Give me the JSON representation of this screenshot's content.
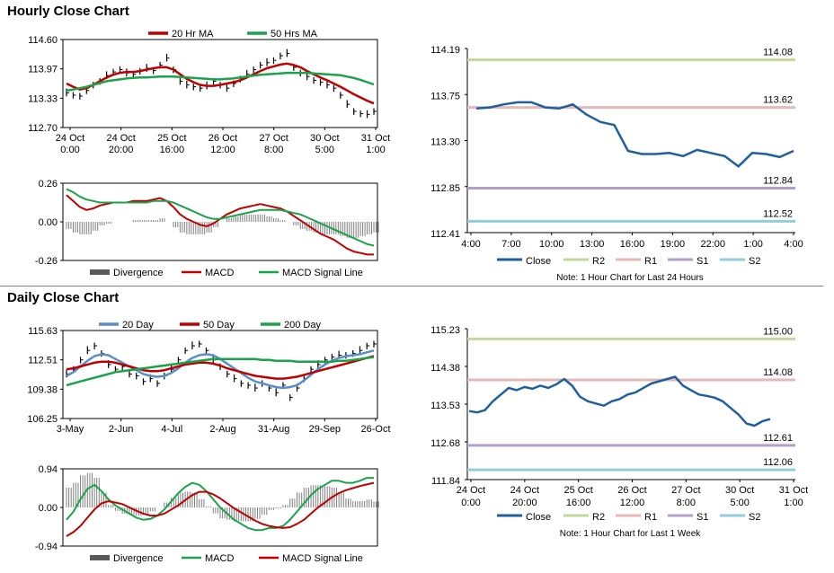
{
  "sections": {
    "hourly_title": "Hourly Close Chart",
    "daily_title": "Daily Close Chart"
  },
  "colors": {
    "close": "#1f5f9f",
    "r2": "#c4d79b",
    "r1": "#e6b8b7",
    "s1": "#b1a0c7",
    "s2": "#92cddc",
    "ma_red": "#c00000",
    "ma_green": "#1aa34a",
    "ma_blue": "#5b8ec6",
    "price": "#000000",
    "hist": "#7f7f7f"
  },
  "chart_data": [
    {
      "id": "hourly_price",
      "type": "line",
      "legend": [
        "20 Hr MA",
        "50 Hrs MA"
      ],
      "yticks": [
        "114.60",
        "113.97",
        "113.33",
        "112.70"
      ],
      "ylim": [
        112.7,
        114.6
      ],
      "xticks": [
        [
          "24 Oct",
          "0:00"
        ],
        [
          "24 Oct",
          "20:00"
        ],
        [
          "25 Oct",
          "16:00"
        ],
        [
          "26 Oct",
          "12:00"
        ],
        [
          "27 Oct",
          "8:00"
        ],
        [
          "30 Oct",
          "5:00"
        ],
        [
          "31 Oct",
          "1:00"
        ]
      ],
      "price": [
        113.45,
        113.4,
        113.38,
        113.5,
        113.62,
        113.7,
        113.82,
        113.9,
        113.95,
        113.88,
        113.85,
        113.92,
        113.98,
        113.93,
        114.05,
        114.2,
        113.95,
        113.7,
        113.62,
        113.58,
        113.55,
        113.6,
        113.7,
        113.62,
        113.55,
        113.65,
        113.75,
        113.85,
        113.95,
        114.05,
        114.1,
        114.15,
        114.25,
        114.3,
        114.0,
        113.88,
        113.8,
        113.72,
        113.68,
        113.62,
        113.55,
        113.4,
        113.2,
        113.05,
        113.0,
        112.98,
        113.05
      ],
      "series": [
        {
          "name": "20 Hr MA",
          "values": [
            113.65,
            113.58,
            113.52,
            113.55,
            113.62,
            113.7,
            113.78,
            113.84,
            113.88,
            113.9,
            113.9,
            113.92,
            113.95,
            113.98,
            114.0,
            114.0,
            113.95,
            113.85,
            113.75,
            113.68,
            113.62,
            113.6,
            113.6,
            113.62,
            113.65,
            113.68,
            113.72,
            113.78,
            113.85,
            113.92,
            113.98,
            114.02,
            114.06,
            114.08,
            114.05,
            114.0,
            113.92,
            113.85,
            113.78,
            113.72,
            113.65,
            113.58,
            113.5,
            113.42,
            113.35,
            113.28,
            113.22
          ]
        },
        {
          "name": "50 Hrs MA",
          "values": [
            113.5,
            113.52,
            113.55,
            113.58,
            113.62,
            113.66,
            113.7,
            113.72,
            113.74,
            113.76,
            113.77,
            113.78,
            113.78,
            113.79,
            113.8,
            113.8,
            113.8,
            113.79,
            113.78,
            113.77,
            113.76,
            113.75,
            113.74,
            113.74,
            113.75,
            113.76,
            113.78,
            113.8,
            113.82,
            113.84,
            113.85,
            113.86,
            113.87,
            113.88,
            113.88,
            113.88,
            113.88,
            113.87,
            113.86,
            113.85,
            113.84,
            113.83,
            113.8,
            113.77,
            113.73,
            113.68,
            113.63
          ]
        }
      ]
    },
    {
      "id": "hourly_macd",
      "type": "line",
      "legend": [
        "Divergence",
        "MACD",
        "MACD Signal Line"
      ],
      "yticks": [
        "0.26",
        "0.00",
        "-0.26"
      ],
      "ylim": [
        -0.26,
        0.26
      ],
      "series": [
        {
          "name": "MACD",
          "values": [
            0.18,
            0.14,
            0.1,
            0.08,
            0.09,
            0.11,
            0.12,
            0.13,
            0.13,
            0.13,
            0.14,
            0.14,
            0.14,
            0.15,
            0.16,
            0.14,
            0.1,
            0.05,
            0.02,
            0.0,
            -0.02,
            -0.03,
            -0.01,
            0.02,
            0.05,
            0.07,
            0.09,
            0.1,
            0.11,
            0.12,
            0.11,
            0.1,
            0.09,
            0.07,
            0.04,
            0.01,
            -0.02,
            -0.05,
            -0.08,
            -0.1,
            -0.12,
            -0.15,
            -0.18,
            -0.2,
            -0.21,
            -0.22,
            -0.22
          ]
        },
        {
          "name": "MACD Signal Line",
          "values": [
            0.22,
            0.2,
            0.17,
            0.15,
            0.14,
            0.13,
            0.13,
            0.13,
            0.13,
            0.13,
            0.13,
            0.13,
            0.13,
            0.14,
            0.14,
            0.14,
            0.13,
            0.11,
            0.09,
            0.07,
            0.05,
            0.03,
            0.02,
            0.02,
            0.03,
            0.04,
            0.05,
            0.06,
            0.07,
            0.08,
            0.08,
            0.08,
            0.08,
            0.07,
            0.06,
            0.05,
            0.03,
            0.01,
            -0.01,
            -0.03,
            -0.05,
            -0.07,
            -0.09,
            -0.11,
            -0.13,
            -0.15,
            -0.16
          ]
        }
      ]
    },
    {
      "id": "hourly_levels",
      "type": "line",
      "yticks": [
        "114.19",
        "113.75",
        "113.30",
        "112.85",
        "112.41"
      ],
      "ylim": [
        112.41,
        114.19
      ],
      "xticks": [
        "4:00",
        "7:00",
        "10:00",
        "13:00",
        "16:00",
        "19:00",
        "22:00",
        "1:00",
        "4:00"
      ],
      "legend": [
        "Close",
        "R2",
        "R1",
        "S1",
        "S2"
      ],
      "levels": [
        {
          "name": "R2",
          "value": 114.08,
          "label": "114.08"
        },
        {
          "name": "R1",
          "value": 113.62,
          "label": "113.62"
        },
        {
          "name": "S1",
          "value": 112.84,
          "label": "112.84"
        },
        {
          "name": "S2",
          "value": 112.52,
          "label": "112.52"
        }
      ],
      "close": [
        113.61,
        113.62,
        113.65,
        113.67,
        113.67,
        113.62,
        113.61,
        113.65,
        113.55,
        113.48,
        113.45,
        113.2,
        113.17,
        113.17,
        113.18,
        113.15,
        113.21,
        113.18,
        113.15,
        113.05,
        113.18,
        113.17,
        113.14,
        113.2
      ],
      "note": "Note: 1 Hour Chart for Last 24 Hours"
    },
    {
      "id": "daily_price",
      "type": "line",
      "legend": [
        "20 Day",
        "50 Day",
        "200 Day"
      ],
      "yticks": [
        "115.63",
        "112.51",
        "109.38",
        "106.25"
      ],
      "ylim": [
        106.25,
        115.63
      ],
      "xticks": [
        "3-May",
        "2-Jun",
        "4-Jul",
        "2-Aug",
        "31-Aug",
        "29-Sep",
        "26-Oct"
      ],
      "price": [
        111.0,
        111.5,
        112.5,
        113.5,
        114.0,
        113.2,
        112.0,
        111.5,
        111.8,
        111.0,
        110.8,
        110.2,
        110.5,
        110.0,
        110.8,
        111.5,
        112.5,
        113.5,
        114.0,
        114.2,
        113.5,
        112.5,
        111.8,
        111.0,
        110.5,
        110.0,
        109.8,
        109.5,
        110.0,
        109.5,
        109.0,
        109.8,
        108.5,
        109.5,
        110.5,
        111.5,
        112.0,
        112.5,
        112.8,
        113.0,
        113.0,
        113.2,
        113.5,
        114.0,
        114.2
      ],
      "series": [
        {
          "name": "20 Day",
          "values": [
            110.8,
            111.2,
            111.8,
            112.4,
            112.9,
            113.1,
            113.0,
            112.6,
            112.2,
            111.8,
            111.4,
            111.0,
            110.8,
            110.7,
            110.8,
            111.1,
            111.6,
            112.2,
            112.7,
            113.0,
            113.1,
            113.0,
            112.6,
            112.1,
            111.6,
            111.1,
            110.6,
            110.2,
            110.0,
            109.8,
            109.6,
            109.5,
            109.6,
            109.8,
            110.3,
            110.9,
            111.5,
            112.0,
            112.4,
            112.7,
            112.9,
            113.0,
            113.1,
            113.3,
            113.5
          ]
        },
        {
          "name": "50 Day",
          "values": [
            111.5,
            111.6,
            111.8,
            112.0,
            112.2,
            112.3,
            112.3,
            112.2,
            112.0,
            111.8,
            111.6,
            111.4,
            111.3,
            111.3,
            111.4,
            111.6,
            111.8,
            112.0,
            112.1,
            112.2,
            112.2,
            112.1,
            111.9,
            111.6,
            111.4,
            111.2,
            111.0,
            110.8,
            110.7,
            110.6,
            110.5,
            110.5,
            110.6,
            110.7,
            110.9,
            111.1,
            111.3,
            111.5,
            111.7,
            111.9,
            112.1,
            112.3,
            112.5,
            112.7,
            112.9
          ]
        },
        {
          "name": "200 Day",
          "values": [
            109.8,
            110.0,
            110.2,
            110.4,
            110.6,
            110.8,
            111.0,
            111.2,
            111.3,
            111.4,
            111.5,
            111.6,
            111.7,
            111.8,
            111.9,
            112.0,
            112.1,
            112.2,
            112.3,
            112.4,
            112.5,
            112.6,
            112.6,
            112.6,
            112.6,
            112.6,
            112.6,
            112.6,
            112.5,
            112.5,
            112.4,
            112.4,
            112.4,
            112.3,
            112.3,
            112.3,
            112.3,
            112.3,
            112.3,
            112.4,
            112.4,
            112.5,
            112.6,
            112.7,
            112.8
          ]
        }
      ]
    },
    {
      "id": "daily_macd",
      "type": "line",
      "legend": [
        "Divergence",
        "MACD",
        "MACD Signal Line"
      ],
      "yticks": [
        "0.94",
        "0.00",
        "-0.94"
      ],
      "ylim": [
        -0.94,
        0.94
      ],
      "series": [
        {
          "name": "MACD",
          "values": [
            -0.3,
            -0.1,
            0.2,
            0.45,
            0.55,
            0.4,
            0.2,
            0.05,
            -0.05,
            -0.15,
            -0.25,
            -0.3,
            -0.28,
            -0.2,
            -0.05,
            0.15,
            0.35,
            0.5,
            0.6,
            0.55,
            0.4,
            0.2,
            0.0,
            -0.15,
            -0.3,
            -0.4,
            -0.5,
            -0.55,
            -0.55,
            -0.5,
            -0.5,
            -0.45,
            -0.3,
            -0.1,
            0.1,
            0.3,
            0.45,
            0.55,
            0.65,
            0.65,
            0.6,
            0.6,
            0.65,
            0.72,
            0.72
          ]
        },
        {
          "name": "MACD Signal Line",
          "values": [
            -0.7,
            -0.6,
            -0.45,
            -0.25,
            -0.05,
            0.1,
            0.15,
            0.12,
            0.08,
            0.0,
            -0.08,
            -0.15,
            -0.2,
            -0.2,
            -0.15,
            -0.05,
            0.05,
            0.18,
            0.3,
            0.38,
            0.38,
            0.32,
            0.22,
            0.1,
            -0.02,
            -0.12,
            -0.22,
            -0.32,
            -0.4,
            -0.45,
            -0.48,
            -0.5,
            -0.48,
            -0.4,
            -0.3,
            -0.15,
            0.0,
            0.12,
            0.25,
            0.35,
            0.42,
            0.47,
            0.52,
            0.56,
            0.6
          ]
        }
      ]
    },
    {
      "id": "weekly_levels",
      "type": "line",
      "yticks": [
        "115.23",
        "114.38",
        "113.53",
        "112.68",
        "111.84"
      ],
      "ylim": [
        111.84,
        115.23
      ],
      "xticks": [
        [
          "24 Oct",
          "0:00"
        ],
        [
          "24 Oct",
          "20:00"
        ],
        [
          "25 Oct",
          "16:00"
        ],
        [
          "26 Oct",
          "12:00"
        ],
        [
          "27 Oct",
          "8:00"
        ],
        [
          "30 Oct",
          "5:00"
        ],
        [
          "31 Oct",
          "1:00"
        ]
      ],
      "legend": [
        "Close",
        "R2",
        "R1",
        "S1",
        "S2"
      ],
      "levels": [
        {
          "name": "R2",
          "value": 115.0,
          "label": "115.00"
        },
        {
          "name": "R1",
          "value": 114.08,
          "label": "114.08"
        },
        {
          "name": "S1",
          "value": 112.61,
          "label": "112.61"
        },
        {
          "name": "S2",
          "value": 112.06,
          "label": "112.06"
        }
      ],
      "close": [
        113.38,
        113.35,
        113.4,
        113.6,
        113.75,
        113.9,
        113.85,
        113.92,
        113.88,
        113.95,
        113.9,
        113.98,
        114.1,
        113.95,
        113.7,
        113.6,
        113.55,
        113.5,
        113.6,
        113.65,
        113.75,
        113.8,
        113.9,
        114.0,
        114.05,
        114.1,
        114.15,
        113.95,
        113.85,
        113.75,
        113.72,
        113.68,
        113.6,
        113.45,
        113.3,
        113.1,
        113.05,
        113.15,
        113.2
      ],
      "note": "Note: 1 Hour Chart for Last 1 Week"
    }
  ]
}
